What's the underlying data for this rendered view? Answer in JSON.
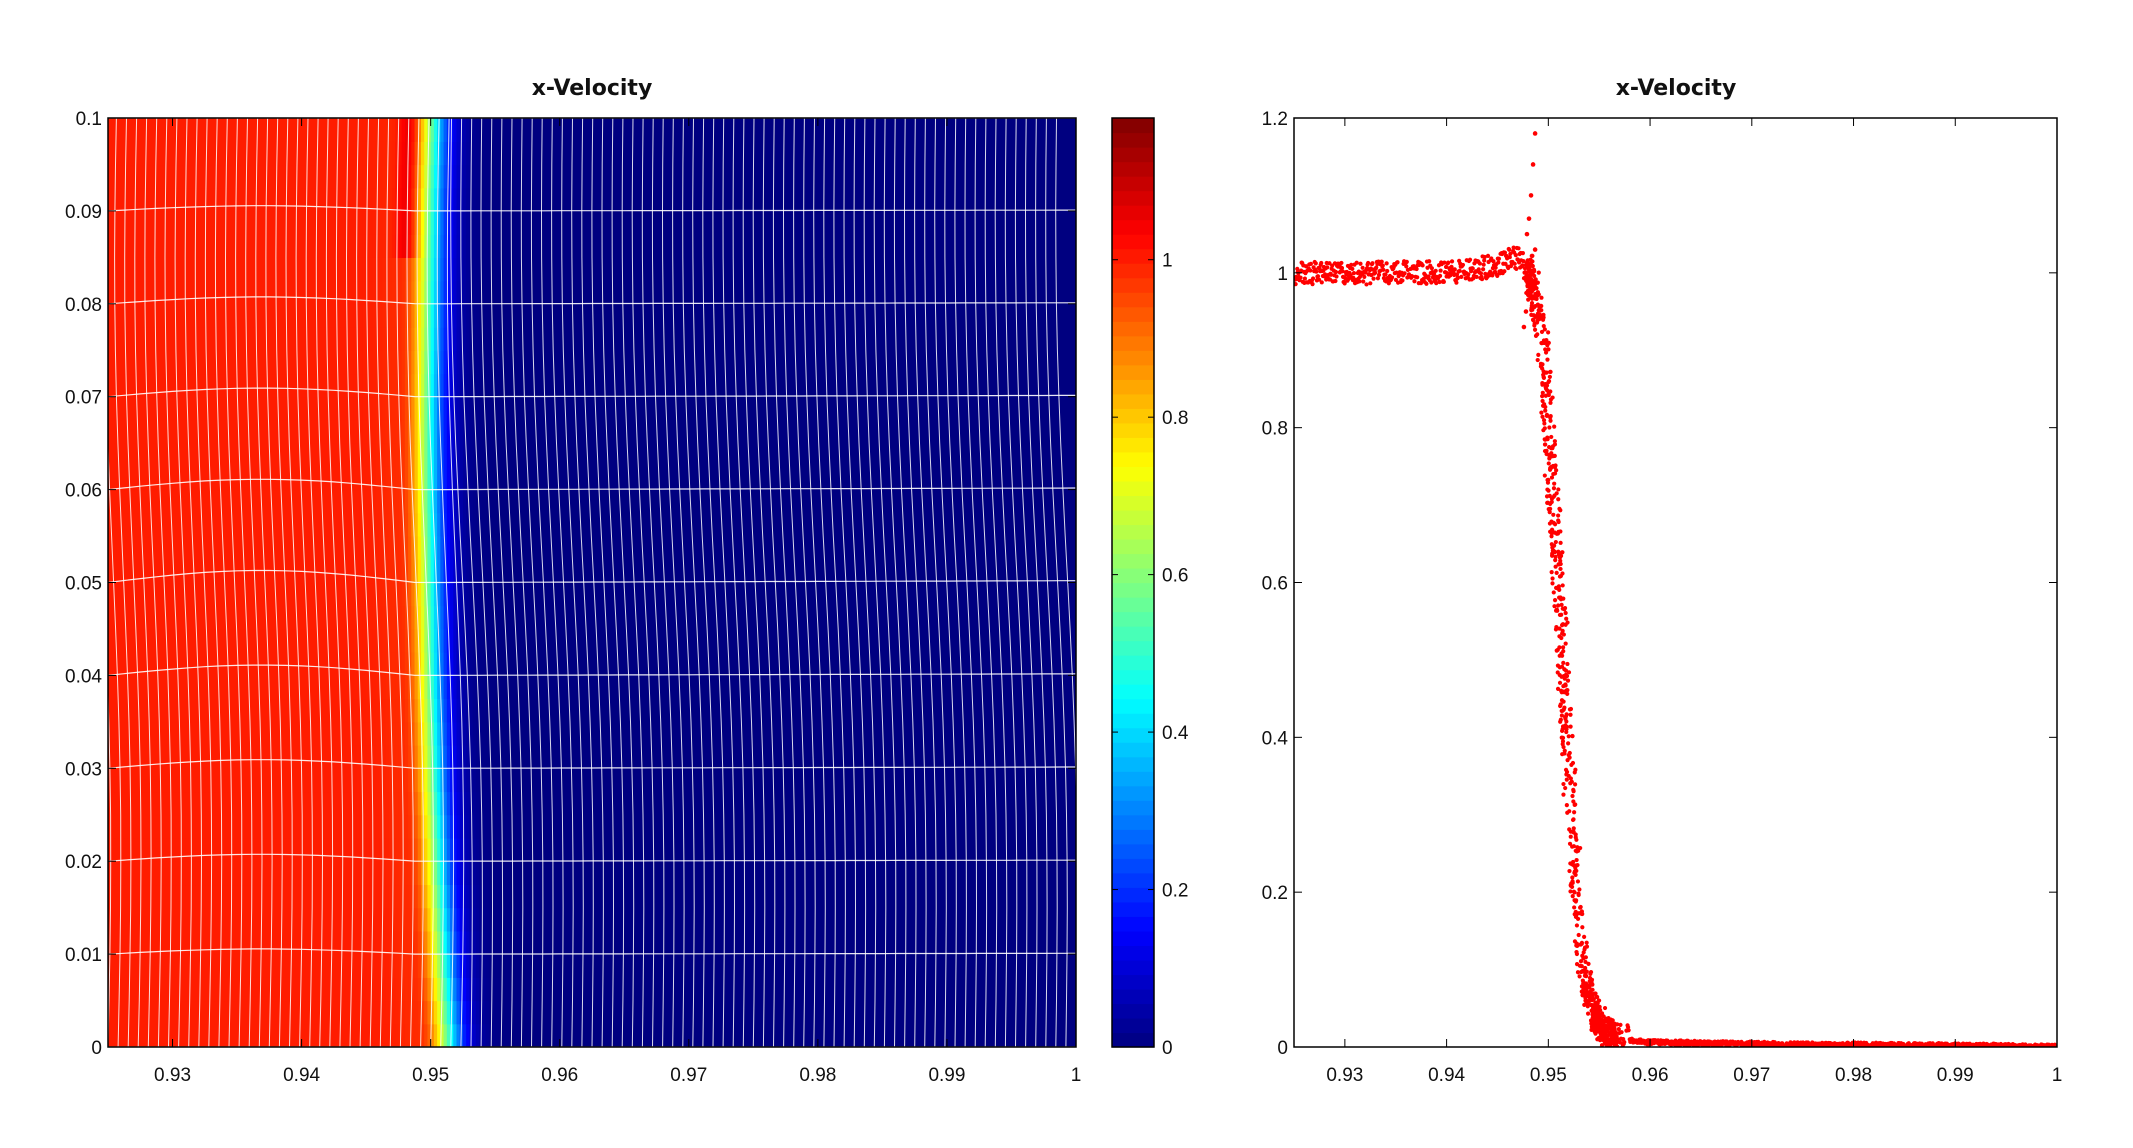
{
  "chart_data": [
    {
      "type": "heatmap",
      "title": "x-Velocity",
      "xlim": [
        0.925,
        1.0
      ],
      "ylim": [
        0,
        0.1
      ],
      "x_ticks": [
        "0.93",
        "0.94",
        "0.95",
        "0.96",
        "0.97",
        "0.98",
        "0.99",
        "1"
      ],
      "y_ticks": [
        "0",
        "0.01",
        "0.02",
        "0.03",
        "0.04",
        "0.05",
        "0.06",
        "0.07",
        "0.08",
        "0.09",
        "0.1"
      ],
      "colormap": "jet",
      "clim": [
        0,
        1.18
      ],
      "colorbar_ticks": [
        "0",
        "0.2",
        "0.4",
        "0.6",
        "0.8",
        "1"
      ],
      "field": {
        "upstream_value": 1.0,
        "downstream_value": 0.0,
        "shock_position_by_y": [
          {
            "y": 0.0,
            "x": 0.9515
          },
          {
            "y": 0.01,
            "x": 0.951
          },
          {
            "y": 0.02,
            "x": 0.9506
          },
          {
            "y": 0.03,
            "x": 0.9503
          },
          {
            "y": 0.04,
            "x": 0.9501
          },
          {
            "y": 0.05,
            "x": 0.95
          },
          {
            "y": 0.06,
            "x": 0.9499
          },
          {
            "y": 0.07,
            "x": 0.9499
          },
          {
            "y": 0.08,
            "x": 0.95
          },
          {
            "y": 0.09,
            "x": 0.9501
          },
          {
            "y": 0.1,
            "x": 0.9503
          }
        ]
      },
      "mesh_overlay": true,
      "grid": false
    },
    {
      "type": "scatter",
      "title": "x-Velocity",
      "xlim": [
        0.925,
        1.0
      ],
      "ylim": [
        0,
        1.2
      ],
      "x_ticks": [
        "0.93",
        "0.94",
        "0.95",
        "0.96",
        "0.97",
        "0.98",
        "0.99",
        "1"
      ],
      "y_ticks": [
        "0",
        "0.2",
        "0.4",
        "0.6",
        "0.8",
        "1",
        "1.2"
      ],
      "marker_color": "#ff0000",
      "grid": false,
      "series": [
        {
          "x": [
            0.925,
            0.93,
            0.935,
            0.94,
            0.945,
            0.947,
            0.948,
            0.9485,
            0.949,
            0.9495,
            0.95,
            0.9505,
            0.951,
            0.9515,
            0.952,
            0.9525,
            0.953,
            0.9535,
            0.954,
            0.955,
            0.956,
            0.958,
            0.96,
            0.965,
            0.97,
            0.975,
            0.98,
            0.985,
            0.99,
            0.995,
            1.0
          ],
          "y": [
            1.0,
            1.0,
            1.0,
            1.0,
            1.01,
            1.02,
            1.0,
            0.98,
            0.95,
            0.9,
            0.8,
            0.7,
            0.6,
            0.48,
            0.36,
            0.25,
            0.16,
            0.1,
            0.06,
            0.03,
            0.015,
            0.008,
            0.006,
            0.005,
            0.004,
            0.003,
            0.003,
            0.002,
            0.002,
            0.001,
            0.0
          ]
        }
      ],
      "outliers": [
        {
          "x": 0.9487,
          "y": 1.18
        },
        {
          "x": 0.9485,
          "y": 1.14
        },
        {
          "x": 0.9483,
          "y": 1.1
        },
        {
          "x": 0.9481,
          "y": 1.07
        },
        {
          "x": 0.9479,
          "y": 1.05
        },
        {
          "x": 0.9487,
          "y": 1.03
        },
        {
          "x": 0.9476,
          "y": 0.93
        },
        {
          "x": 0.9478,
          "y": 0.95
        }
      ]
    }
  ]
}
